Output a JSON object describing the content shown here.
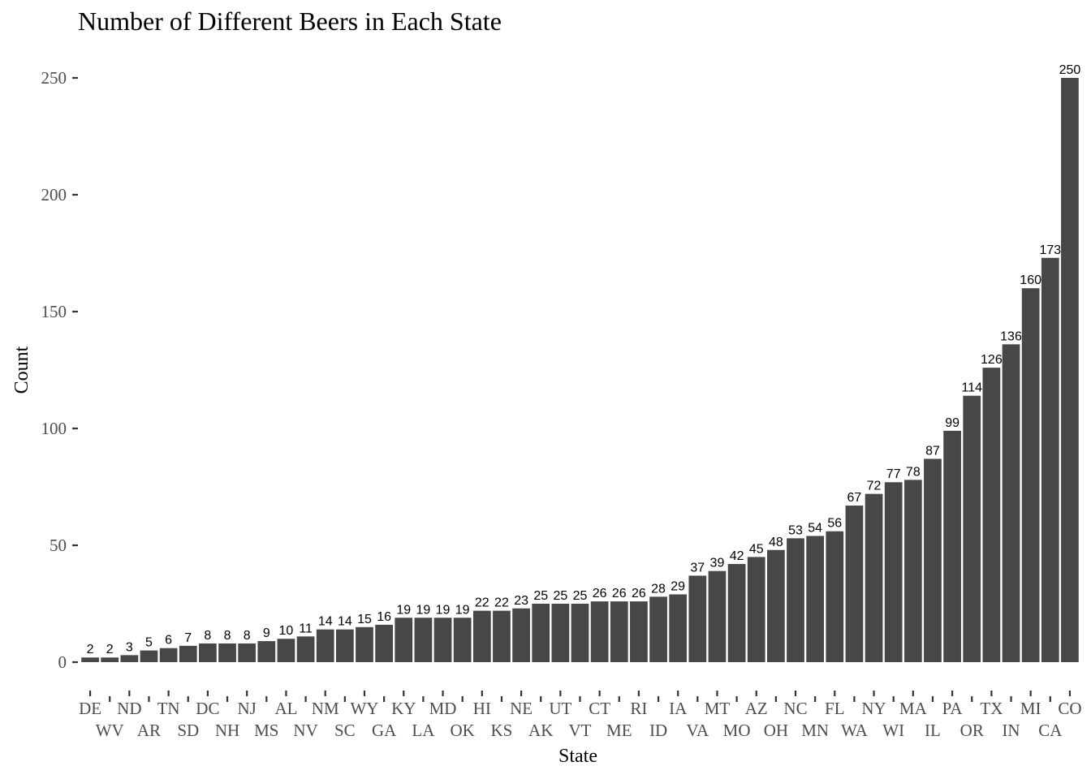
{
  "chart_data": {
    "type": "bar",
    "title": "Number of Different Beers in Each State",
    "xlabel": "State",
    "ylabel": "Count",
    "ylim": [
      0,
      250
    ],
    "yticks": [
      0,
      50,
      100,
      150,
      200,
      250
    ],
    "grid": false,
    "legend": "none",
    "bar_color": "#474747",
    "categories": [
      "DE",
      "WV",
      "ND",
      "AR",
      "TN",
      "SD",
      "DC",
      "NH",
      "NJ",
      "MS",
      "AL",
      "NV",
      "NM",
      "SC",
      "WY",
      "GA",
      "KY",
      "LA",
      "MD",
      "OK",
      "HI",
      "KS",
      "NE",
      "AK",
      "UT",
      "VT",
      "CT",
      "ME",
      "RI",
      "ID",
      "IA",
      "VA",
      "MT",
      "MO",
      "AZ",
      "OH",
      "NC",
      "MN",
      "FL",
      "WA",
      "NY",
      "WI",
      "MA",
      "IL",
      "PA",
      "OR",
      "TX",
      "IN",
      "MI",
      "CA",
      "CO"
    ],
    "values": [
      2,
      2,
      3,
      5,
      6,
      7,
      8,
      8,
      8,
      9,
      10,
      11,
      14,
      14,
      15,
      16,
      19,
      19,
      19,
      19,
      22,
      22,
      23,
      25,
      25,
      25,
      26,
      26,
      26,
      28,
      29,
      37,
      39,
      42,
      45,
      48,
      53,
      54,
      56,
      67,
      72,
      77,
      78,
      87,
      99,
      114,
      126,
      136,
      160,
      173,
      250
    ]
  }
}
